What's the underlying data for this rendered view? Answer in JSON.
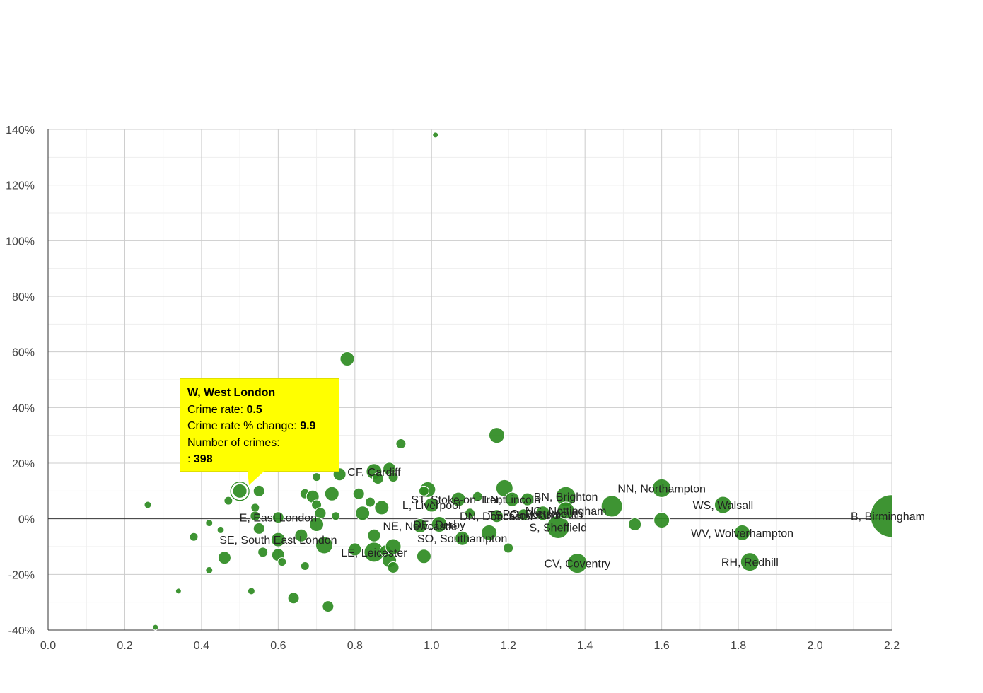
{
  "chart_data": {
    "type": "scatter",
    "x_ticks": [
      "0.0",
      "0.2",
      "0.4",
      "0.6",
      "0.8",
      "1.0",
      "1.2",
      "1.4",
      "1.6",
      "1.8",
      "2.0",
      "2.2"
    ],
    "y_ticks": [
      "140%",
      "120%",
      "100%",
      "80%",
      "60%",
      "40%",
      "20%",
      "0%",
      "-20%",
      "-40%"
    ],
    "xlim": [
      0,
      2.2
    ],
    "ylim": [
      -40,
      140
    ],
    "grid": true,
    "color": "#2e8b22",
    "points": [
      {
        "x": 1.01,
        "y": 138,
        "r": 4
      },
      {
        "x": 0.78,
        "y": 57.5,
        "r": 10
      },
      {
        "x": 1.17,
        "y": 30,
        "r": 11
      },
      {
        "x": 0.92,
        "y": 27,
        "r": 7
      },
      {
        "x": 0.85,
        "y": 17,
        "r": 11,
        "label": "CF, Cardiff"
      },
      {
        "x": 0.89,
        "y": 18,
        "r": 9
      },
      {
        "x": 0.86,
        "y": 14.5,
        "r": 8
      },
      {
        "x": 0.9,
        "y": 15,
        "r": 7
      },
      {
        "x": 0.76,
        "y": 16,
        "r": 9
      },
      {
        "x": 0.7,
        "y": 15,
        "r": 6
      },
      {
        "x": 0.5,
        "y": 10,
        "r": 10
      },
      {
        "x": 0.55,
        "y": 10,
        "r": 8
      },
      {
        "x": 0.26,
        "y": 5,
        "r": 5
      },
      {
        "x": 0.47,
        "y": 6.5,
        "r": 6
      },
      {
        "x": 0.54,
        "y": 4,
        "r": 6
      },
      {
        "x": 0.67,
        "y": 9,
        "r": 7
      },
      {
        "x": 0.69,
        "y": 8,
        "r": 9
      },
      {
        "x": 0.74,
        "y": 9,
        "r": 10
      },
      {
        "x": 0.81,
        "y": 9,
        "r": 8
      },
      {
        "x": 0.7,
        "y": 5,
        "r": 7
      },
      {
        "x": 0.54,
        "y": 1,
        "r": 7
      },
      {
        "x": 0.6,
        "y": 0.5,
        "r": 8,
        "label": "E, East London"
      },
      {
        "x": 0.71,
        "y": 2,
        "r": 8
      },
      {
        "x": 0.75,
        "y": 1,
        "r": 6
      },
      {
        "x": 0.82,
        "y": 2,
        "r": 10
      },
      {
        "x": 0.84,
        "y": 6,
        "r": 7
      },
      {
        "x": 0.87,
        "y": 4,
        "r": 10
      },
      {
        "x": 0.42,
        "y": -1.5,
        "r": 5
      },
      {
        "x": 0.45,
        "y": -4,
        "r": 5
      },
      {
        "x": 0.55,
        "y": -3.5,
        "r": 8
      },
      {
        "x": 0.7,
        "y": -2,
        "r": 10
      },
      {
        "x": 0.38,
        "y": -6.5,
        "r": 6
      },
      {
        "x": 0.6,
        "y": -7.5,
        "r": 10,
        "label": "SE, South East London"
      },
      {
        "x": 0.66,
        "y": -6,
        "r": 9
      },
      {
        "x": 0.56,
        "y": -12,
        "r": 7
      },
      {
        "x": 0.6,
        "y": -13,
        "r": 9
      },
      {
        "x": 0.61,
        "y": -15.5,
        "r": 6
      },
      {
        "x": 0.46,
        "y": -14,
        "r": 9
      },
      {
        "x": 0.42,
        "y": -18.5,
        "r": 5
      },
      {
        "x": 0.67,
        "y": -17,
        "r": 6
      },
      {
        "x": 0.72,
        "y": -9.5,
        "r": 12
      },
      {
        "x": 0.8,
        "y": -11,
        "r": 9
      },
      {
        "x": 0.85,
        "y": -6,
        "r": 9
      },
      {
        "x": 0.85,
        "y": -12,
        "r": 14,
        "label": "LE, Leicester"
      },
      {
        "x": 0.88,
        "y": -11.5,
        "r": 8
      },
      {
        "x": 0.9,
        "y": -10,
        "r": 11
      },
      {
        "x": 0.89,
        "y": -15,
        "r": 10
      },
      {
        "x": 0.9,
        "y": -17.5,
        "r": 8
      },
      {
        "x": 0.98,
        "y": -13.5,
        "r": 10
      },
      {
        "x": 0.53,
        "y": -26,
        "r": 5
      },
      {
        "x": 0.34,
        "y": -26,
        "r": 4
      },
      {
        "x": 0.64,
        "y": -28.5,
        "r": 8
      },
      {
        "x": 0.73,
        "y": -31.5,
        "r": 8
      },
      {
        "x": 0.28,
        "y": -39,
        "r": 4
      },
      {
        "x": 0.97,
        "y": -2.5,
        "r": 10,
        "label": "NE, Newcastle"
      },
      {
        "x": 0.99,
        "y": 10.5,
        "r": 11
      },
      {
        "x": 0.98,
        "y": 10,
        "r": 7
      },
      {
        "x": 1.0,
        "y": 5,
        "r": 10,
        "label": "L, Liverpool"
      },
      {
        "x": 1.02,
        "y": -2,
        "r": 11,
        "label": "DE, Derby"
      },
      {
        "x": 1.07,
        "y": 7,
        "r": 10,
        "label": "ST, Stoke-on-Trent"
      },
      {
        "x": 1.08,
        "y": -7,
        "r": 10,
        "label": "SO, Southampton"
      },
      {
        "x": 1.1,
        "y": 2,
        "r": 7
      },
      {
        "x": 1.12,
        "y": 8,
        "r": 7
      },
      {
        "x": 1.15,
        "y": -5,
        "r": 11
      },
      {
        "x": 1.17,
        "y": 1,
        "r": 9,
        "label": "DN, Doncaster"
      },
      {
        "x": 1.19,
        "y": 11,
        "r": 12
      },
      {
        "x": 1.21,
        "y": 7,
        "r": 10,
        "label": "LN, Lincoln"
      },
      {
        "x": 1.2,
        "y": -10.5,
        "r": 7
      },
      {
        "x": 1.24,
        "y": 1.5,
        "r": 8,
        "label": "TS, Cleveland"
      },
      {
        "x": 1.25,
        "y": 7,
        "r": 9
      },
      {
        "x": 1.29,
        "y": 2,
        "r": 10,
        "label": "PO, Portsmouth"
      },
      {
        "x": 1.33,
        "y": -3,
        "r": 16,
        "label": "S, Sheffield"
      },
      {
        "x": 1.35,
        "y": 8,
        "r": 14,
        "label": "BN, Brighton"
      },
      {
        "x": 1.35,
        "y": 3,
        "r": 12,
        "label": "NG, Nottingham"
      },
      {
        "x": 1.47,
        "y": 4.5,
        "r": 15
      },
      {
        "x": 1.53,
        "y": -2,
        "r": 9
      },
      {
        "x": 1.6,
        "y": 11,
        "r": 13,
        "label": "NN, Northampton"
      },
      {
        "x": 1.6,
        "y": -0.5,
        "r": 11
      },
      {
        "x": 1.38,
        "y": -16,
        "r": 14,
        "label": "CV, Coventry"
      },
      {
        "x": 1.76,
        "y": 5,
        "r": 12,
        "label": "WS, Walsall"
      },
      {
        "x": 1.81,
        "y": -5,
        "r": 11,
        "label": "WV, Wolverhampton"
      },
      {
        "x": 1.83,
        "y": -15.5,
        "r": 13,
        "label": "RH, Redhill"
      },
      {
        "x": 2.2,
        "y": 1,
        "r": 30,
        "label": "B, Birmingham"
      }
    ],
    "highlight": {
      "x": 0.5,
      "y": 9.9
    }
  },
  "tooltip": {
    "title": "W, West London",
    "rate_label": "Crime rate: ",
    "rate_value": "0.5",
    "change_label": "Crime rate % change: ",
    "change_value": "9.9",
    "crimes_label": "Number of crimes:",
    "crimes_prefix": ": ",
    "crimes_value": "398"
  }
}
